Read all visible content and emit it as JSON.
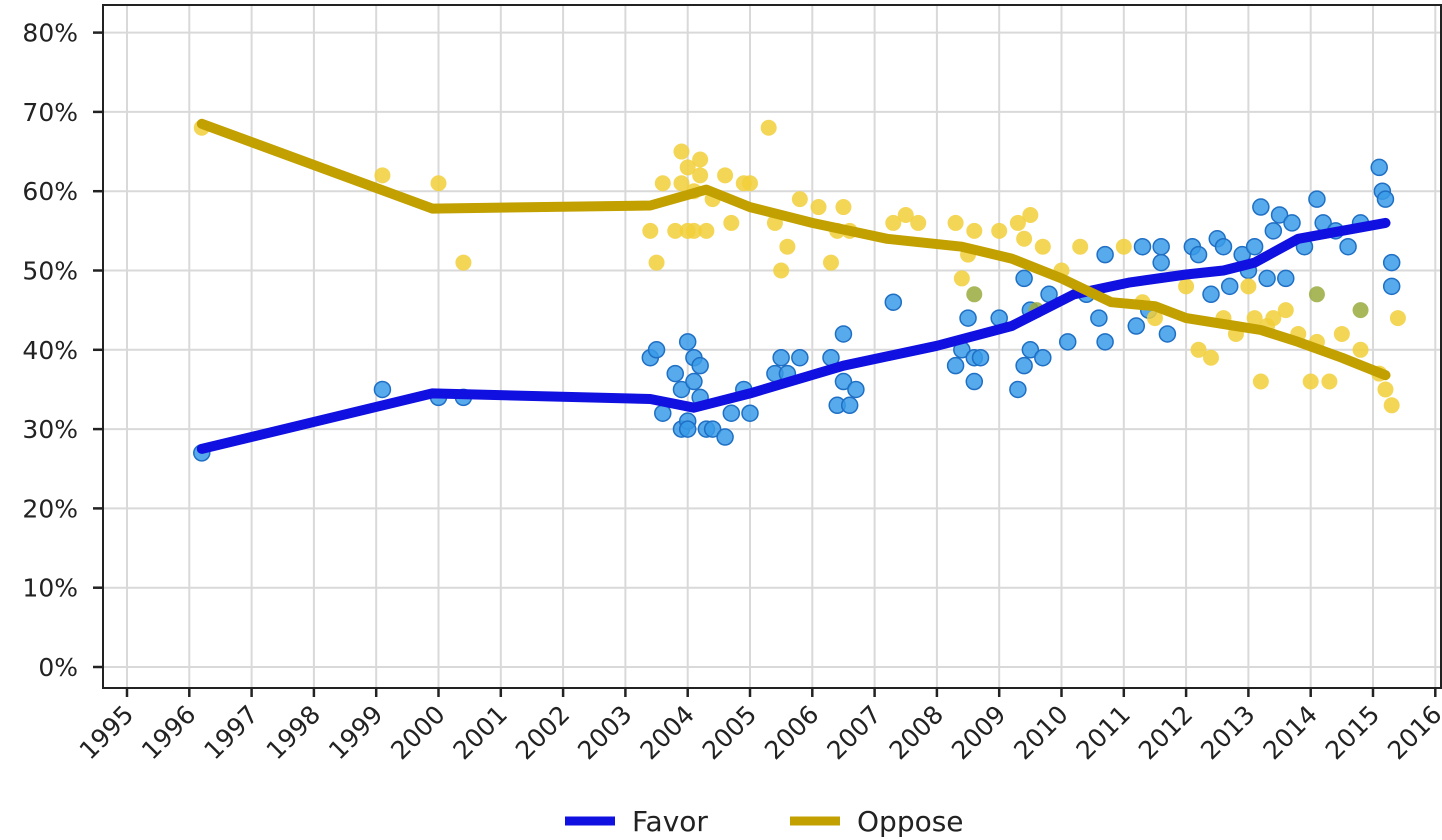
{
  "chart_data": {
    "type": "line",
    "title": "",
    "xlabel": "",
    "ylabel": "",
    "xlim": [
      1995,
      2016
    ],
    "ylim": [
      0,
      80
    ],
    "x_ticks": [
      "1995",
      "1996",
      "1997",
      "1998",
      "1999",
      "2000",
      "2001",
      "2002",
      "2003",
      "2004",
      "2005",
      "2006",
      "2007",
      "2008",
      "2009",
      "2010",
      "2011",
      "2012",
      "2013",
      "2014",
      "2015",
      "2016"
    ],
    "y_ticks": [
      "0%",
      "10%",
      "20%",
      "30%",
      "40%",
      "50%",
      "60%",
      "70%",
      "80%"
    ],
    "grid": true,
    "legend": {
      "position": "bottom",
      "entries": [
        "Favor",
        "Oppose"
      ]
    },
    "series": [
      {
        "name": "Favor",
        "kind": "trend",
        "color": "#1010e0",
        "x": [
          1996.2,
          1999.9,
          2003.4,
          2004.1,
          2005.0,
          2006.5,
          2008.0,
          2009.2,
          2010.2,
          2011.1,
          2012.0,
          2012.6,
          2013.1,
          2013.8,
          2015.2
        ],
        "y": [
          27.5,
          34.5,
          33.8,
          32.7,
          34.5,
          38.0,
          40.5,
          43.0,
          47.0,
          48.5,
          49.5,
          50.0,
          51.0,
          54.0,
          56.0
        ]
      },
      {
        "name": "Oppose",
        "kind": "trend",
        "color": "#c2a000",
        "x": [
          1996.2,
          1999.9,
          2003.4,
          2004.3,
          2005.0,
          2006.0,
          2007.2,
          2008.4,
          2009.2,
          2010.0,
          2010.8,
          2011.5,
          2012.0,
          2012.8,
          2013.2,
          2013.8,
          2014.5,
          2015.2
        ],
        "y": [
          68.5,
          57.8,
          58.2,
          60.2,
          58.0,
          56.0,
          54.0,
          53.0,
          51.5,
          49.0,
          46.0,
          45.5,
          44.0,
          43.0,
          42.5,
          41.0,
          39.0,
          36.8
        ]
      },
      {
        "name": "Favor",
        "kind": "points",
        "color": "#3a9be8",
        "x": [
          1996.2,
          1999.1,
          2000.0,
          2000.4,
          2003.4,
          2003.5,
          2003.6,
          2003.8,
          2003.9,
          2003.9,
          2004.0,
          2004.0,
          2004.0,
          2004.1,
          2004.1,
          2004.2,
          2004.2,
          2004.3,
          2004.4,
          2004.6,
          2004.7,
          2004.9,
          2005.0,
          2005.4,
          2005.5,
          2005.6,
          2005.8,
          2006.3,
          2006.4,
          2006.5,
          2006.5,
          2006.6,
          2006.7,
          2007.3,
          2008.3,
          2008.4,
          2008.5,
          2008.6,
          2008.6,
          2008.7,
          2009.0,
          2009.3,
          2009.4,
          2009.4,
          2009.5,
          2009.5,
          2009.7,
          2009.8,
          2010.1,
          2010.4,
          2010.6,
          2010.7,
          2010.7,
          2011.2,
          2011.3,
          2011.4,
          2011.6,
          2011.6,
          2011.7,
          2012.1,
          2012.2,
          2012.4,
          2012.5,
          2012.6,
          2012.7,
          2012.9,
          2013.0,
          2013.1,
          2013.2,
          2013.3,
          2013.4,
          2013.5,
          2013.6,
          2013.7,
          2013.9,
          2014.1,
          2014.2,
          2014.4,
          2014.6,
          2014.8,
          2015.1,
          2015.15,
          2015.2,
          2015.3,
          2015.3
        ],
        "y": [
          27,
          35,
          34,
          34,
          39,
          40,
          32,
          37,
          30,
          35,
          31,
          30,
          41,
          36,
          39,
          38,
          34,
          30,
          30,
          29,
          32,
          35,
          32,
          37,
          39,
          37,
          39,
          39,
          33,
          42,
          36,
          33,
          35,
          46,
          38,
          40,
          44,
          36,
          39,
          39,
          44,
          35,
          38,
          49,
          40,
          45,
          39,
          47,
          41,
          47,
          44,
          41,
          52,
          43,
          53,
          45,
          51,
          53,
          42,
          53,
          52,
          47,
          54,
          53,
          48,
          52,
          50,
          53,
          58,
          49,
          55,
          57,
          49,
          56,
          53,
          59,
          56,
          55,
          53,
          56,
          63,
          60,
          59,
          51,
          48
        ]
      },
      {
        "name": "Oppose",
        "kind": "points",
        "color": "#f2cf3a",
        "x": [
          1996.2,
          1999.1,
          2000.0,
          2000.4,
          2003.4,
          2003.5,
          2003.6,
          2003.8,
          2003.9,
          2003.9,
          2004.0,
          2004.0,
          2004.1,
          2004.1,
          2004.2,
          2004.2,
          2004.3,
          2004.4,
          2004.6,
          2004.7,
          2004.9,
          2005.0,
          2005.3,
          2005.4,
          2005.5,
          2005.6,
          2005.8,
          2006.1,
          2006.3,
          2006.4,
          2006.5,
          2006.6,
          2007.3,
          2007.5,
          2007.7,
          2008.3,
          2008.4,
          2008.5,
          2008.6,
          2009.0,
          2009.3,
          2009.4,
          2009.5,
          2009.7,
          2010.0,
          2010.3,
          2011.0,
          2011.3,
          2011.5,
          2012.0,
          2012.2,
          2012.4,
          2012.6,
          2012.8,
          2013.0,
          2013.1,
          2013.2,
          2013.3,
          2013.4,
          2013.6,
          2013.8,
          2014.0,
          2014.1,
          2014.3,
          2014.5,
          2014.8,
          2015.1,
          2015.2,
          2015.3,
          2015.4
        ],
        "y": [
          68,
          62,
          61,
          51,
          55,
          51,
          61,
          55,
          61,
          65,
          55,
          63,
          60,
          55,
          64,
          62,
          55,
          59,
          62,
          56,
          61,
          61,
          68,
          56,
          50,
          53,
          59,
          58,
          51,
          55,
          58,
          55,
          56,
          57,
          56,
          56,
          49,
          52,
          55,
          55,
          56,
          54,
          57,
          53,
          50,
          53,
          53,
          46,
          44,
          48,
          40,
          39,
          44,
          42,
          48,
          44,
          36,
          43,
          44,
          45,
          42,
          36,
          41,
          36,
          42,
          40,
          37,
          35,
          33,
          44
        ]
      },
      {
        "name": "",
        "kind": "overlap-points",
        "color": "#9aaa3e",
        "x": [
          2008.6,
          2009.6,
          2014.1,
          2014.8
        ],
        "y": [
          47,
          45,
          47,
          45
        ]
      }
    ]
  }
}
